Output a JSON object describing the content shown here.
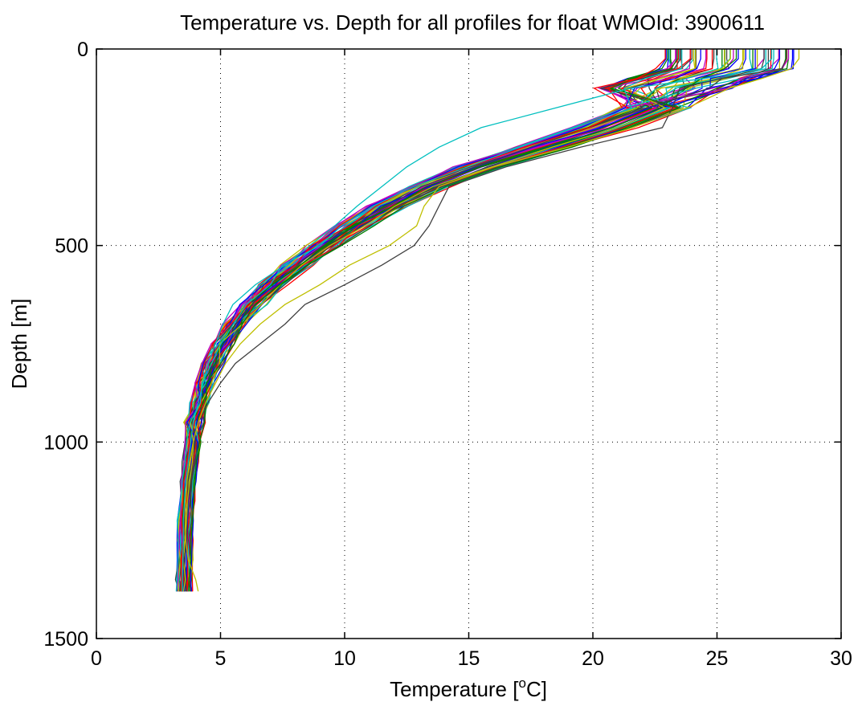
{
  "chart_data": {
    "type": "line",
    "title": "Temperature vs. Depth for all profiles for float WMOId: 3900611",
    "xlabel": "Temperature [",
    "xlabel_superscript": "o",
    "xlabel_suffix": "C]",
    "ylabel": "Depth [m]",
    "xlim": [
      0,
      30
    ],
    "ylim": [
      0,
      1500
    ],
    "y_reversed": true,
    "grid": true,
    "xticks": [
      "0",
      "5",
      "10",
      "15",
      "20",
      "25",
      "30"
    ],
    "yticks": [
      "0",
      "500",
      "1000",
      "1500"
    ],
    "xtick_values": [
      0,
      5,
      10,
      15,
      20,
      25,
      30
    ],
    "ytick_values": [
      0,
      500,
      1000,
      1500
    ],
    "series_colors": [
      "#0000ff",
      "#008000",
      "#ff0000",
      "#00bfbf",
      "#bf00bf",
      "#bfbf00",
      "#404040"
    ],
    "series_count": 60,
    "depth": [
      0,
      25,
      50,
      75,
      100,
      150,
      200,
      250,
      300,
      350,
      400,
      450,
      500,
      550,
      600,
      650,
      700,
      750,
      800,
      850,
      900,
      950,
      1000,
      1050,
      1100,
      1150,
      1200,
      1250,
      1300,
      1350,
      1380
    ],
    "reference_profile": [
      27.5,
      27.5,
      27.3,
      25.8,
      24.5,
      22.5,
      20.5,
      18.0,
      15.5,
      13.4,
      11.8,
      10.4,
      9.2,
      8.1,
      7.1,
      6.3,
      5.6,
      5.1,
      4.7,
      4.4,
      4.15,
      3.95,
      3.8,
      3.7,
      3.6,
      3.55,
      3.5,
      3.48,
      3.46,
      3.45,
      3.45
    ],
    "outlier_profiles": [
      {
        "color": "#404040",
        "t": [
          27.8,
          27.8,
          27.6,
          25.2,
          23.5,
          23.2,
          22.8,
          19.5,
          16.5,
          14.2,
          13.8,
          13.4,
          12.8,
          11.5,
          10.0,
          8.4,
          7.6,
          6.6,
          5.6,
          5.0,
          4.5,
          4.1,
          3.9,
          3.75,
          3.65,
          3.6,
          3.55,
          3.5,
          3.5,
          3.48,
          3.48
        ]
      },
      {
        "color": "#bfbf00",
        "t": [
          28.3,
          28.3,
          28.0,
          26.8,
          25.5,
          23.8,
          21.6,
          19.0,
          16.0,
          13.8,
          13.2,
          12.9,
          11.8,
          10.2,
          9.0,
          7.6,
          6.6,
          5.8,
          5.2,
          4.8,
          4.4,
          4.1,
          3.9,
          3.75,
          3.65,
          3.6,
          3.58,
          3.6,
          3.7,
          4.0,
          4.1
        ]
      },
      {
        "color": "#00bfbf",
        "t": [
          27.2,
          27.2,
          26.8,
          24.5,
          21.5,
          18.5,
          15.5,
          13.8,
          12.5,
          11.5,
          10.5,
          9.6,
          8.6,
          7.6,
          6.4,
          5.5,
          5.1,
          4.8,
          4.5,
          4.3,
          4.1,
          3.9,
          3.8,
          3.7,
          3.6,
          3.55,
          3.5,
          3.5,
          3.48,
          3.46,
          3.46
        ]
      }
    ]
  }
}
